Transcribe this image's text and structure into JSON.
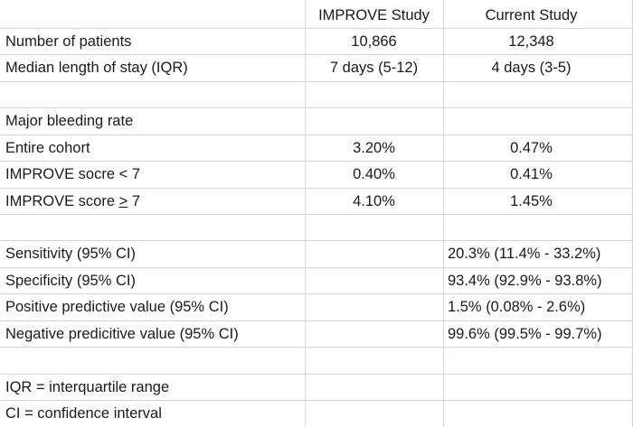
{
  "table": {
    "header": {
      "label": "",
      "col1": "IMPROVE Study",
      "col2": "Current Study"
    },
    "rows": [
      {
        "label": "Number of patients",
        "col1": "10,866",
        "col2": "12,348"
      },
      {
        "label": "Median length of stay (IQR)",
        "col1": "7 days (5-12)",
        "col2": "4 days (3-5)"
      },
      {
        "label": "",
        "col1": "",
        "col2": ""
      },
      {
        "label": "Major bleeding rate",
        "col1": "",
        "col2": ""
      },
      {
        "label": "Entire cohort",
        "col1": "3.20%",
        "col2": "0.47%"
      },
      {
        "label": "IMPROVE socre < 7",
        "col1": "0.40%",
        "col2": "0.41%"
      },
      {
        "label_prefix": "IMPROVE score ",
        "label_sym": ">",
        "label_suffix": " 7",
        "col1": "4.10%",
        "col2": "1.45%"
      },
      {
        "label": "",
        "col1": "",
        "col2": ""
      },
      {
        "label": "Sensitivity (95% CI)",
        "col1": "",
        "col2": "20.3% (11.4% - 33.2%)"
      },
      {
        "label": "Specificity (95% CI)",
        "col1": "",
        "col2": "93.4% (92.9% - 93.8%)"
      },
      {
        "label": "Positive predictive value (95% CI)",
        "col1": "",
        "col2": "1.5% (0.08% - 2.6%)"
      },
      {
        "label": "Negative predicitive value (95% CI)",
        "col1": "",
        "col2": "99.6% (99.5% - 99.7%)"
      },
      {
        "label": "",
        "col1": "",
        "col2": ""
      },
      {
        "label": "IQR = interquartile range",
        "col1": "",
        "col2": ""
      },
      {
        "label": "CI = confidence interval",
        "col1": "",
        "col2": ""
      }
    ]
  }
}
